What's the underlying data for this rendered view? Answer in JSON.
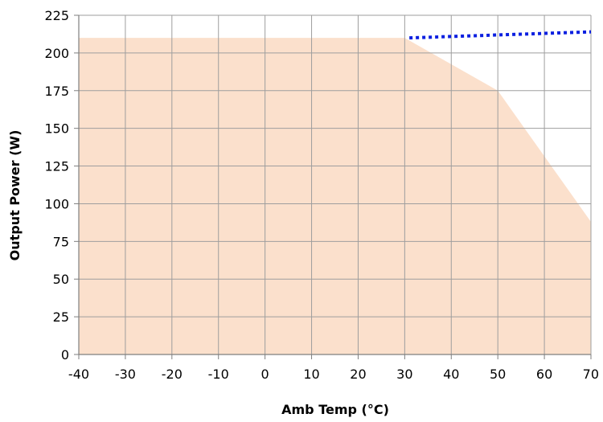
{
  "chart_data": {
    "type": "area",
    "title": "",
    "xlabel": "Amb Temp (°C)",
    "ylabel": "Output Power (W)",
    "xlim": [
      -40,
      70
    ],
    "ylim": [
      0,
      225
    ],
    "x_ticks": [
      -40,
      -30,
      -20,
      -10,
      0,
      10,
      20,
      30,
      40,
      50,
      60,
      70
    ],
    "y_ticks": [
      0,
      25,
      50,
      75,
      100,
      125,
      150,
      175,
      200,
      225
    ],
    "grid": true,
    "legend": "none",
    "series": [
      {
        "type": "area",
        "color": "#fbe0cc",
        "points": [
          {
            "x": -40,
            "y": 210
          },
          {
            "x": 30,
            "y": 210
          },
          {
            "x": 50,
            "y": 175
          },
          {
            "x": 70,
            "y": 88
          }
        ]
      },
      {
        "type": "line",
        "style": "dotted",
        "color": "#0a1fe0",
        "points": [
          {
            "x": 31,
            "y": 210
          },
          {
            "x": 70,
            "y": 214
          }
        ]
      }
    ]
  }
}
